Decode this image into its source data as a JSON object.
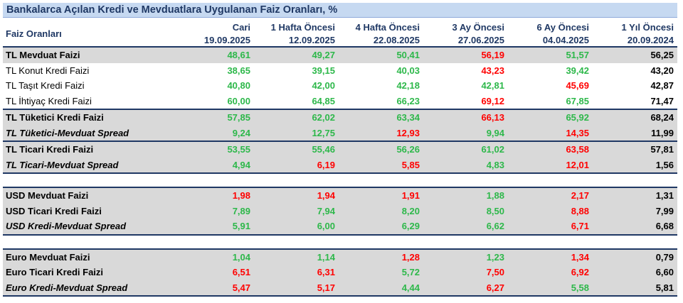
{
  "title": "Bankalarca Açılan Kredi ve Mevduatlara Uygulanan Faiz Oranları, %",
  "header": {
    "row_label": "Faiz Oranları",
    "columns": [
      {
        "name": "Cari",
        "date": "19.09.2025"
      },
      {
        "name": "1 Hafta Öncesi",
        "date": "12.09.2025"
      },
      {
        "name": "4 Hafta Öncesi",
        "date": "22.08.2025"
      },
      {
        "name": "3 Ay Öncesi",
        "date": "27.06.2025"
      },
      {
        "name": "6 Ay Öncesi",
        "date": "04.04.2025"
      },
      {
        "name": "1 Yıl Öncesi",
        "date": "20.09.2024"
      }
    ]
  },
  "colors": {
    "green": "#2db84a",
    "red": "#ff0000",
    "black": "#000000",
    "header": "#1f3864"
  },
  "rows": [
    {
      "label": "TL Mevduat Faizi",
      "style": "bold",
      "shade": true,
      "top": true,
      "values": [
        "48,61",
        "49,27",
        "50,41",
        "56,19",
        "51,57",
        "56,25"
      ],
      "colors": [
        "g",
        "g",
        "g",
        "r",
        "g",
        "k"
      ]
    },
    {
      "label": "TL Konut Kredi Faizi",
      "style": "plain",
      "shade": false,
      "values": [
        "38,65",
        "39,15",
        "40,03",
        "43,23",
        "39,42",
        "43,20"
      ],
      "colors": [
        "g",
        "g",
        "g",
        "r",
        "g",
        "k"
      ]
    },
    {
      "label": "TL Taşıt Kredi Faizi",
      "style": "plain",
      "shade": false,
      "values": [
        "40,80",
        "42,00",
        "42,18",
        "42,81",
        "45,69",
        "42,87"
      ],
      "colors": [
        "g",
        "g",
        "g",
        "g",
        "r",
        "k"
      ]
    },
    {
      "label": "TL İhtiyaç Kredi Faizi",
      "style": "plain",
      "shade": false,
      "values": [
        "60,00",
        "64,85",
        "66,23",
        "69,12",
        "67,85",
        "71,47"
      ],
      "colors": [
        "g",
        "g",
        "g",
        "r",
        "g",
        "k"
      ]
    },
    {
      "label": "TL Tüketici Kredi Faizi",
      "style": "bold",
      "shade": true,
      "top": true,
      "values": [
        "57,85",
        "62,02",
        "63,34",
        "66,13",
        "65,92",
        "68,24"
      ],
      "colors": [
        "g",
        "g",
        "g",
        "r",
        "g",
        "k"
      ]
    },
    {
      "label": "TL Tüketici-Mevduat Spread",
      "style": "italic",
      "shade": true,
      "values": [
        "9,24",
        "12,75",
        "12,93",
        "9,94",
        "14,35",
        "11,99"
      ],
      "colors": [
        "g",
        "g",
        "r",
        "g",
        "r",
        "k"
      ]
    },
    {
      "label": "TL Ticari Kredi Faizi",
      "style": "bold",
      "shade": true,
      "top": true,
      "values": [
        "53,55",
        "55,46",
        "56,26",
        "61,02",
        "63,58",
        "57,81"
      ],
      "colors": [
        "g",
        "g",
        "g",
        "g",
        "r",
        "k"
      ]
    },
    {
      "label": "TL Ticari-Mevduat Spread",
      "style": "italic",
      "shade": true,
      "bottom": true,
      "values": [
        "4,94",
        "6,19",
        "5,85",
        "4,83",
        "12,01",
        "1,56"
      ],
      "colors": [
        "g",
        "r",
        "r",
        "g",
        "r",
        "k"
      ]
    },
    {
      "gap": true
    },
    {
      "label": "USD Mevduat Faizi",
      "style": "bold",
      "shade": true,
      "top": true,
      "values": [
        "1,98",
        "1,94",
        "1,91",
        "1,88",
        "2,17",
        "1,31"
      ],
      "colors": [
        "r",
        "r",
        "r",
        "g",
        "r",
        "k"
      ]
    },
    {
      "label": "USD Ticari Kredi Faizi",
      "style": "bold",
      "shade": true,
      "values": [
        "7,89",
        "7,94",
        "8,20",
        "8,50",
        "8,88",
        "7,99"
      ],
      "colors": [
        "g",
        "g",
        "g",
        "g",
        "r",
        "k"
      ]
    },
    {
      "label": "USD Kredi-Mevduat Spread",
      "style": "italic",
      "shade": true,
      "bottom": true,
      "values": [
        "5,91",
        "6,00",
        "6,29",
        "6,62",
        "6,71",
        "6,68"
      ],
      "colors": [
        "g",
        "g",
        "g",
        "g",
        "r",
        "k"
      ]
    },
    {
      "gap": true
    },
    {
      "label": "Euro Mevduat Faizi",
      "style": "bold",
      "shade": true,
      "top": true,
      "values": [
        "1,04",
        "1,14",
        "1,28",
        "1,23",
        "1,34",
        "0,79"
      ],
      "colors": [
        "g",
        "g",
        "r",
        "g",
        "r",
        "k"
      ]
    },
    {
      "label": "Euro Ticari Kredi Faizi",
      "style": "bold",
      "shade": true,
      "values": [
        "6,51",
        "6,31",
        "5,72",
        "7,50",
        "6,92",
        "6,60"
      ],
      "colors": [
        "r",
        "r",
        "g",
        "r",
        "r",
        "k"
      ]
    },
    {
      "label": "Euro Kredi-Mevduat Spread",
      "style": "italic",
      "shade": true,
      "bottom": true,
      "values": [
        "5,47",
        "5,17",
        "4,44",
        "6,27",
        "5,58",
        "5,81"
      ],
      "colors": [
        "r",
        "r",
        "g",
        "r",
        "g",
        "k"
      ]
    }
  ]
}
